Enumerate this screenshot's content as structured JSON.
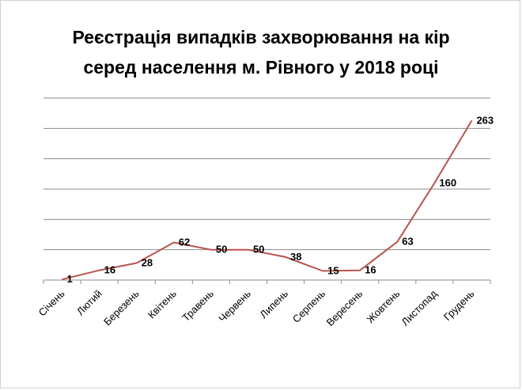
{
  "title_line1": "Реєстрація випадків захворювання на кір",
  "title_line2": "серед населення м. Рівного у 2018 році",
  "chart_data": {
    "type": "line",
    "categories": [
      "Січень",
      "Лютий",
      "Березень",
      "Квітень",
      "Травень",
      "Червень",
      "Липень",
      "Серпень",
      "Вересень",
      "Жовтень",
      "Листопад",
      "Грудень"
    ],
    "series": [
      {
        "values": [
          1,
          16,
          28,
          62,
          50,
          50,
          38,
          15,
          16,
          63,
          160,
          263
        ]
      }
    ],
    "data_labels": [
      "1",
      "16",
      "28",
      "62",
      "50",
      "50",
      "38",
      "15",
      "16",
      "63",
      "160",
      "263"
    ],
    "ylim": [
      0,
      300
    ],
    "y_gridlines": [
      0,
      50,
      100,
      150,
      200,
      250,
      300
    ],
    "y_tick_labels_visible": false,
    "grid": true,
    "legend": "none",
    "line_color": "#b85450",
    "grid_color": "#8c8c8c"
  }
}
